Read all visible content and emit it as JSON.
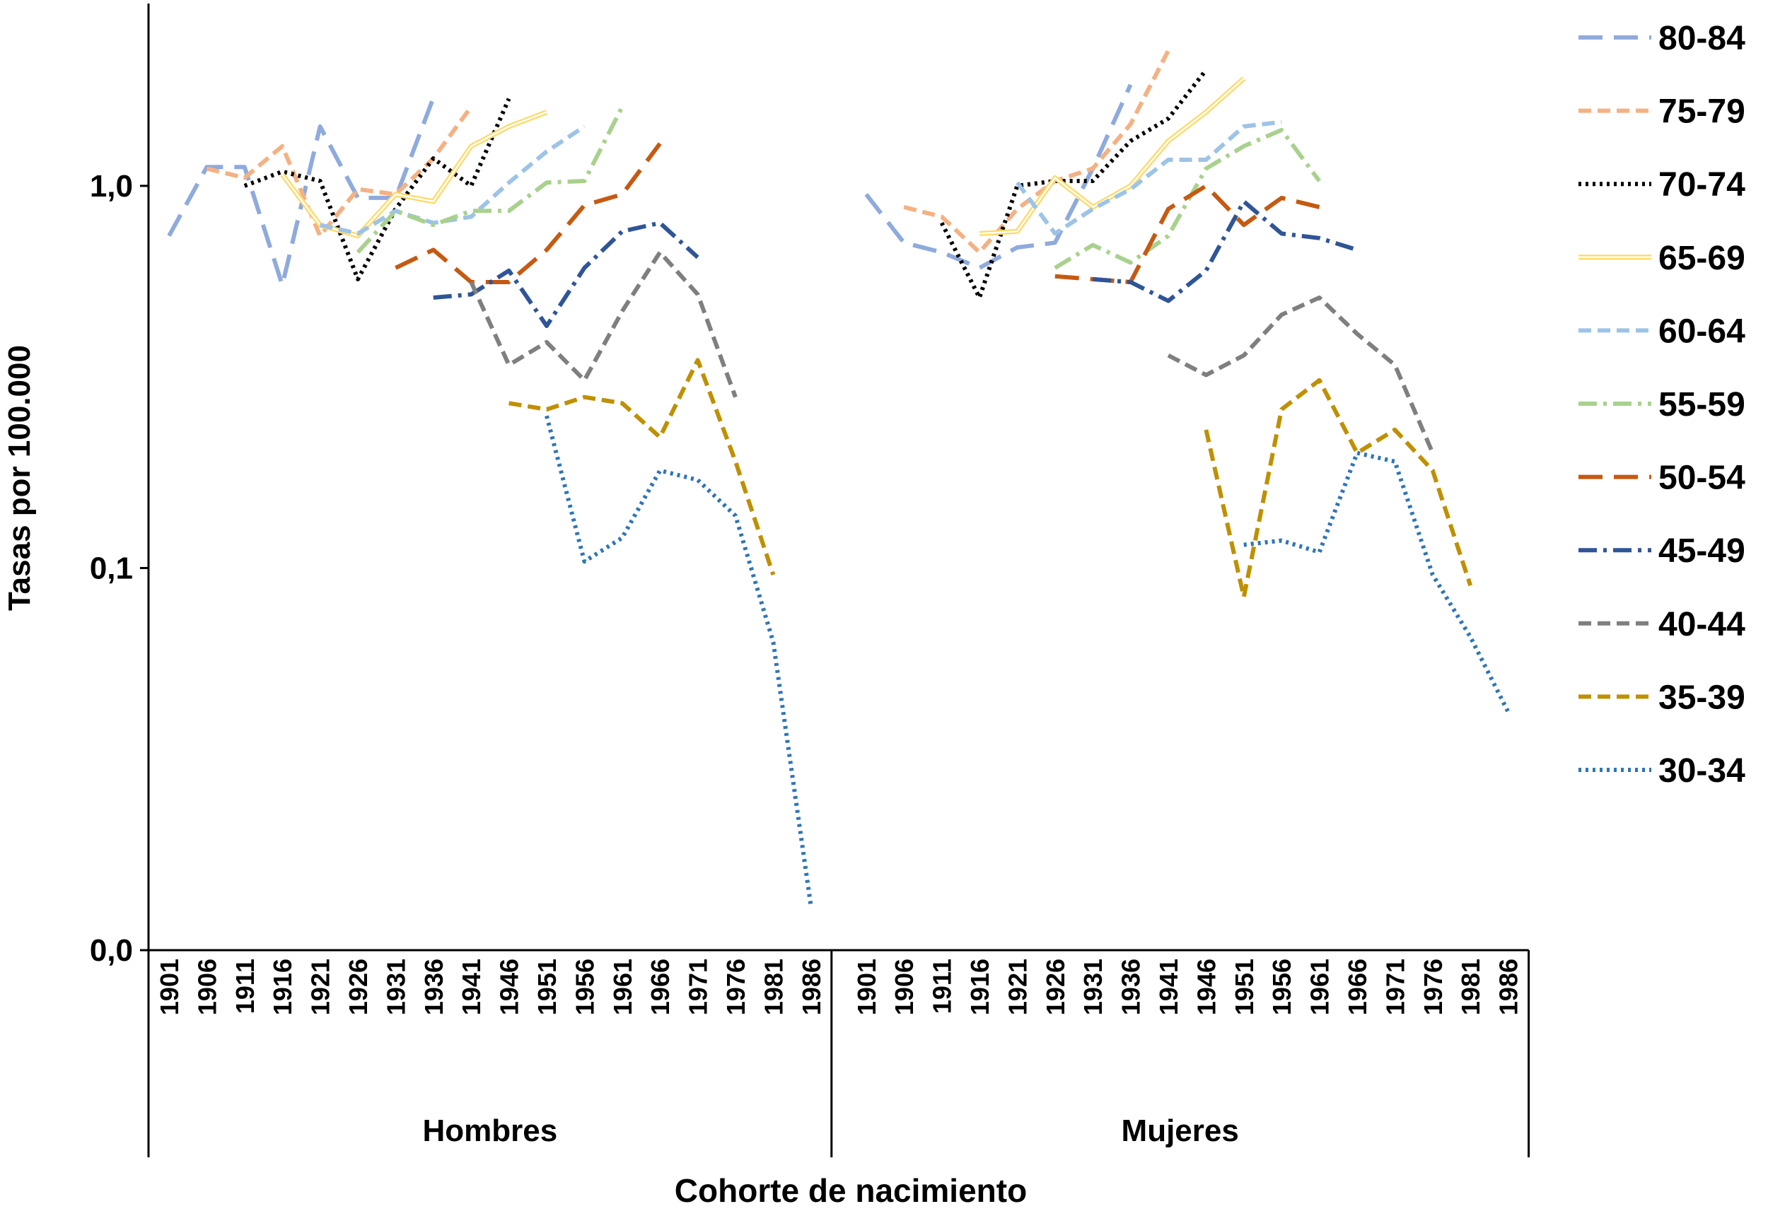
{
  "chart_data": {
    "type": "line",
    "x_label": "Cohorte de nacimiento",
    "y_label": "Tasas por 100.000",
    "log_scale": true,
    "ylim": [
      0.01,
      3
    ],
    "yticks": [
      {
        "value": 0.01,
        "label": "0,0"
      },
      {
        "value": 0.1,
        "label": "0,1"
      },
      {
        "value": 1,
        "label": "1,0"
      }
    ],
    "legend": "right",
    "x_groups": [
      {
        "name": "Hombres",
        "categories": [
          "1901",
          "1906",
          "1911",
          "1916",
          "1921",
          "1926",
          "1931",
          "1936",
          "1941",
          "1946",
          "1951",
          "1956",
          "1961",
          "1966",
          "1971",
          "1976",
          "1981",
          "1986"
        ]
      },
      {
        "name": "Mujeres",
        "categories": [
          "1901",
          "1906",
          "1911",
          "1916",
          "1921",
          "1926",
          "1931",
          "1936",
          "1941",
          "1946",
          "1951",
          "1956",
          "1961",
          "1966",
          "1971",
          "1976",
          "1981",
          "1986"
        ]
      }
    ],
    "series": [
      {
        "name": "80-84",
        "color": "#8faadc",
        "dash": "long-dash",
        "values": [
          [
            0.74,
            1.12,
            1.12,
            0.55,
            1.43,
            0.93,
            0.93,
            1.7,
            null,
            null,
            null,
            null,
            null,
            null,
            null,
            null,
            null,
            null
          ],
          [
            0.95,
            0.71,
            0.67,
            0.61,
            0.69,
            0.71,
            1.11,
            1.84,
            null,
            null,
            null,
            null,
            null,
            null,
            null,
            null,
            null,
            null
          ]
        ]
      },
      {
        "name": "75-79",
        "color": "#f4b183",
        "dash": "dash",
        "values": [
          [
            null,
            1.11,
            1.05,
            1.27,
            0.74,
            0.98,
            0.95,
            1.18,
            1.61,
            null,
            null,
            null,
            null,
            null,
            null,
            null,
            null,
            null
          ],
          [
            null,
            0.88,
            0.83,
            0.67,
            0.87,
            1.03,
            1.11,
            1.45,
            2.26,
            null,
            null,
            null,
            null,
            null,
            null,
            null,
            null,
            null
          ]
        ]
      },
      {
        "name": "70-74",
        "color": "#000000",
        "dash": "dot",
        "values": [
          [
            null,
            null,
            1.0,
            1.09,
            1.03,
            0.57,
            0.87,
            1.18,
            1.0,
            1.69,
            null,
            null,
            null,
            null,
            null,
            null,
            null,
            null
          ],
          [
            null,
            null,
            0.8,
            0.51,
            1.0,
            1.03,
            1.03,
            1.31,
            1.5,
            2.01,
            null,
            null,
            null,
            null,
            null,
            null,
            null,
            null
          ]
        ]
      },
      {
        "name": "65-69",
        "color": "#ffd966",
        "dash": "double",
        "values": [
          [
            null,
            null,
            null,
            1.07,
            0.79,
            0.74,
            0.95,
            0.91,
            1.27,
            1.43,
            1.56,
            null,
            null,
            null,
            null,
            null,
            null,
            null
          ],
          [
            null,
            null,
            null,
            0.75,
            0.76,
            1.05,
            0.88,
            1.0,
            1.31,
            1.56,
            1.91,
            null,
            null,
            null,
            null,
            null,
            null,
            null
          ]
        ]
      },
      {
        "name": "60-64",
        "color": "#9dc3e6",
        "dash": "dash",
        "values": [
          [
            null,
            null,
            null,
            null,
            0.79,
            0.75,
            0.86,
            0.8,
            0.83,
            1.02,
            1.23,
            1.43,
            null,
            null,
            null,
            null,
            null,
            null
          ],
          [
            null,
            null,
            null,
            null,
            1.02,
            0.75,
            0.87,
            0.98,
            1.17,
            1.17,
            1.43,
            1.47,
            null,
            null,
            null,
            null,
            null,
            null
          ]
        ]
      },
      {
        "name": "55-59",
        "color": "#a9d18e",
        "dash": "dash-dot",
        "values": [
          [
            null,
            null,
            null,
            null,
            null,
            0.67,
            0.86,
            0.79,
            0.86,
            0.86,
            1.02,
            1.03,
            1.61,
            null,
            null,
            null,
            null,
            null
          ],
          [
            null,
            null,
            null,
            null,
            null,
            0.61,
            0.7,
            0.63,
            0.74,
            1.11,
            1.27,
            1.4,
            1.03,
            null,
            null,
            null,
            null,
            null
          ]
        ]
      },
      {
        "name": "50-54",
        "color": "#c55a11",
        "dash": "long-dash",
        "values": [
          [
            null,
            null,
            null,
            null,
            null,
            null,
            0.61,
            0.68,
            0.56,
            0.56,
            0.68,
            0.89,
            0.95,
            1.29,
            null,
            null,
            null,
            null
          ],
          [
            null,
            null,
            null,
            null,
            null,
            0.58,
            0.57,
            0.56,
            0.87,
            1.0,
            0.79,
            0.93,
            0.88,
            null,
            null,
            null,
            null,
            null
          ]
        ]
      },
      {
        "name": "45-49",
        "color": "#2f5597",
        "dash": "dash-dot",
        "values": [
          [
            null,
            null,
            null,
            null,
            null,
            null,
            null,
            0.51,
            0.52,
            0.6,
            0.43,
            0.61,
            0.76,
            0.8,
            0.65,
            null,
            null,
            null
          ],
          [
            null,
            null,
            null,
            null,
            null,
            null,
            0.57,
            0.56,
            0.5,
            0.6,
            0.91,
            0.75,
            0.73,
            0.68,
            null,
            null,
            null,
            null
          ]
        ]
      },
      {
        "name": "40-44",
        "color": "#7f7f7f",
        "dash": "dash",
        "values": [
          [
            null,
            null,
            null,
            null,
            null,
            null,
            null,
            null,
            0.56,
            0.34,
            0.39,
            0.31,
            0.47,
            0.67,
            0.52,
            0.28,
            null,
            null
          ],
          [
            null,
            null,
            null,
            null,
            null,
            null,
            null,
            null,
            0.36,
            0.32,
            0.36,
            0.46,
            0.51,
            0.41,
            0.34,
            0.2,
            null,
            null
          ]
        ]
      },
      {
        "name": "35-39",
        "color": "#bf9000",
        "dash": "dash",
        "values": [
          [
            null,
            null,
            null,
            null,
            null,
            null,
            null,
            null,
            null,
            0.27,
            0.26,
            0.28,
            0.27,
            0.22,
            0.35,
            0.19,
            0.096,
            null
          ],
          [
            null,
            null,
            null,
            null,
            null,
            null,
            null,
            null,
            null,
            0.23,
            0.084,
            0.26,
            0.31,
            0.2,
            0.23,
            0.18,
            0.09,
            null
          ]
        ]
      },
      {
        "name": "30-34",
        "color": "#2e75b6",
        "dash": "dot",
        "values": [
          [
            null,
            null,
            null,
            null,
            null,
            null,
            null,
            null,
            null,
            null,
            0.25,
            0.104,
            0.12,
            0.18,
            0.17,
            0.137,
            0.064,
            0.013
          ],
          [
            null,
            null,
            null,
            null,
            null,
            null,
            null,
            null,
            null,
            null,
            0.115,
            0.118,
            0.11,
            0.2,
            0.19,
            0.096,
            0.066,
            0.042
          ]
        ]
      }
    ]
  }
}
